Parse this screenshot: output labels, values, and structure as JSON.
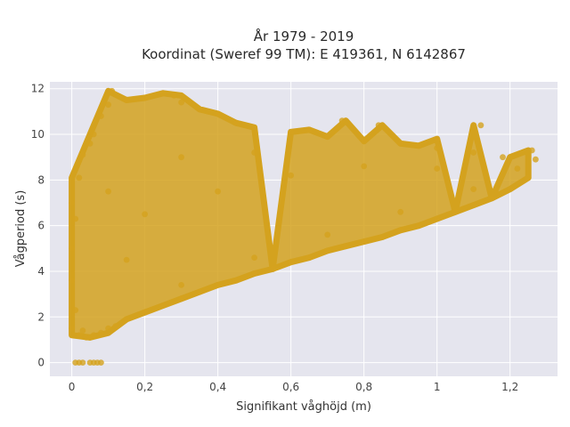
{
  "chart_data": {
    "type": "scatter",
    "title": "År 1979 - 2019",
    "subtitle": "Koordinat (Sweref 99 TM): E 419361, N 6142867",
    "xlabel": "Signifikant våghöjd (m)",
    "ylabel": "Vågperiod (s)",
    "xlim": [
      -0.06,
      1.33
    ],
    "ylim": [
      -0.6,
      12.3
    ],
    "x_ticks": [
      0,
      0.2,
      0.4,
      0.6,
      0.8,
      1,
      1.2
    ],
    "x_tick_labels": [
      "0",
      "0,2",
      "0,4",
      "0,6",
      "0,8",
      "1",
      "1,2"
    ],
    "y_ticks": [
      0,
      2,
      4,
      6,
      8,
      10,
      12
    ],
    "y_tick_labels": [
      "0",
      "2",
      "4",
      "6",
      "8",
      "10",
      "12"
    ],
    "grid": true,
    "marker_color": "#D4A21E",
    "background_color": "#E5E5EE",
    "points": [
      [
        0.01,
        0.0
      ],
      [
        0.02,
        0.0
      ],
      [
        0.03,
        0.0
      ],
      [
        0.05,
        0.0
      ],
      [
        0.06,
        0.0
      ],
      [
        0.07,
        0.0
      ],
      [
        0.08,
        0.0
      ],
      [
        0.0,
        1.5
      ],
      [
        0.01,
        2.3
      ],
      [
        0.0,
        3.6
      ],
      [
        0.0,
        5.0
      ],
      [
        0.01,
        6.3
      ],
      [
        0.0,
        7.0
      ],
      [
        0.02,
        8.1
      ],
      [
        0.03,
        9.1
      ],
      [
        0.02,
        1.2
      ],
      [
        0.03,
        1.4
      ],
      [
        0.04,
        1.1
      ],
      [
        0.05,
        1.1
      ],
      [
        0.06,
        1.2
      ],
      [
        0.08,
        1.3
      ],
      [
        0.1,
        1.5
      ],
      [
        0.12,
        1.6
      ],
      [
        0.15,
        1.9
      ],
      [
        0.2,
        2.2
      ],
      [
        0.25,
        2.5
      ],
      [
        0.3,
        2.8
      ],
      [
        0.35,
        3.1
      ],
      [
        0.4,
        3.4
      ],
      [
        0.45,
        3.6
      ],
      [
        0.5,
        3.9
      ],
      [
        0.55,
        4.1
      ],
      [
        0.6,
        4.4
      ],
      [
        0.65,
        4.6
      ],
      [
        0.7,
        4.9
      ],
      [
        0.75,
        5.1
      ],
      [
        0.8,
        5.3
      ],
      [
        0.85,
        5.5
      ],
      [
        0.9,
        5.8
      ],
      [
        0.95,
        6.0
      ],
      [
        1.0,
        6.3
      ],
      [
        1.05,
        6.6
      ],
      [
        1.1,
        6.9
      ],
      [
        1.15,
        7.2
      ],
      [
        1.2,
        7.6
      ],
      [
        1.25,
        8.1
      ],
      [
        1.27,
        8.9
      ],
      [
        1.26,
        9.3
      ],
      [
        1.22,
        8.5
      ],
      [
        1.18,
        9.0
      ],
      [
        1.1,
        9.2
      ],
      [
        1.0,
        9.4
      ],
      [
        0.9,
        9.6
      ],
      [
        0.8,
        9.7
      ],
      [
        0.7,
        9.9
      ],
      [
        0.6,
        10.1
      ],
      [
        0.5,
        10.3
      ],
      [
        0.45,
        10.5
      ],
      [
        0.4,
        10.9
      ],
      [
        0.35,
        11.1
      ],
      [
        0.3,
        11.4
      ],
      [
        0.28,
        11.7
      ],
      [
        0.25,
        11.8
      ],
      [
        0.2,
        11.6
      ],
      [
        0.15,
        11.5
      ],
      [
        0.11,
        11.9
      ],
      [
        0.1,
        11.3
      ],
      [
        0.08,
        10.8
      ],
      [
        0.06,
        10.0
      ],
      [
        0.05,
        9.6
      ],
      [
        0.74,
        10.6
      ],
      [
        0.84,
        10.4
      ],
      [
        1.12,
        10.4
      ],
      [
        1.0,
        9.8
      ],
      [
        0.95,
        9.5
      ],
      [
        0.65,
        10.2
      ],
      [
        0.3,
        3.4
      ],
      [
        0.5,
        4.6
      ],
      [
        0.7,
        5.6
      ],
      [
        0.9,
        6.6
      ],
      [
        1.1,
        7.6
      ],
      [
        0.2,
        6.5
      ],
      [
        0.4,
        7.5
      ],
      [
        0.6,
        8.2
      ],
      [
        0.8,
        8.6
      ],
      [
        1.0,
        8.5
      ],
      [
        0.15,
        4.5
      ],
      [
        0.3,
        9.0
      ],
      [
        0.5,
        9.2
      ],
      [
        0.1,
        7.5
      ]
    ]
  }
}
